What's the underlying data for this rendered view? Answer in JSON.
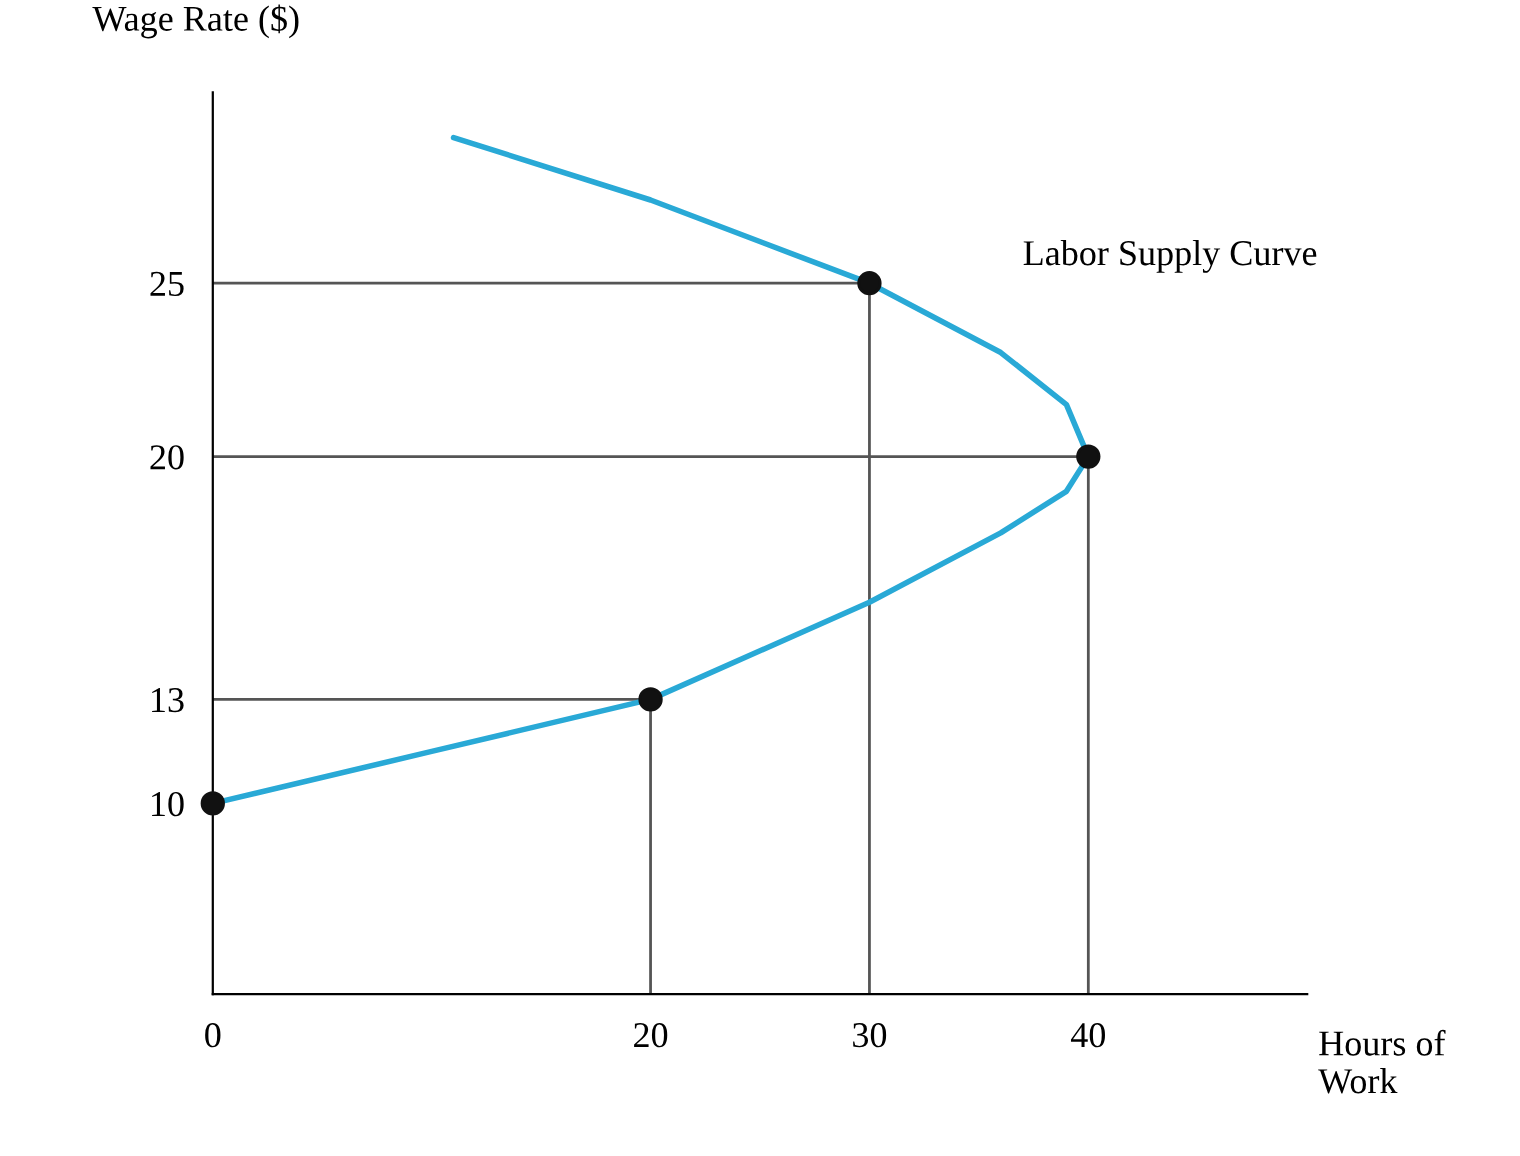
{
  "chart_data": {
    "type": "line",
    "ylabel": "Wage Rate ($)",
    "xlabel": "Hours of Work",
    "xlim": [
      0,
      50
    ],
    "ylim": [
      4.5,
      30.5
    ],
    "xticks": [
      0,
      20,
      30,
      40
    ],
    "yticks": [
      10,
      13,
      20,
      25
    ],
    "grid": false,
    "legend": false,
    "annotations": [
      "Labor Supply Curve"
    ],
    "series": [
      {
        "color": "#555555",
        "x": [
          0,
          20,
          20
        ],
        "values": [
          13,
          13,
          4.5
        ]
      },
      {
        "color": "#555555",
        "x": [
          0,
          40,
          40
        ],
        "values": [
          20,
          20,
          4.5
        ]
      },
      {
        "color": "#555555",
        "x": [
          0,
          30,
          30
        ],
        "values": [
          25,
          25,
          4.5
        ]
      },
      {
        "color": "#29a9d6",
        "x": [
          0,
          10,
          20,
          30,
          36,
          39,
          40,
          39,
          36,
          30,
          20,
          11
        ],
        "values": [
          10,
          11.5,
          13,
          15.8,
          17.8,
          19,
          20,
          21.5,
          23,
          25,
          27.4,
          29.2
        ]
      },
      {
        "type": "scatter",
        "color": "#111111",
        "marker": "circle",
        "x": [
          0,
          20,
          30,
          40
        ],
        "values": [
          10,
          13,
          25,
          20
        ]
      }
    ]
  }
}
